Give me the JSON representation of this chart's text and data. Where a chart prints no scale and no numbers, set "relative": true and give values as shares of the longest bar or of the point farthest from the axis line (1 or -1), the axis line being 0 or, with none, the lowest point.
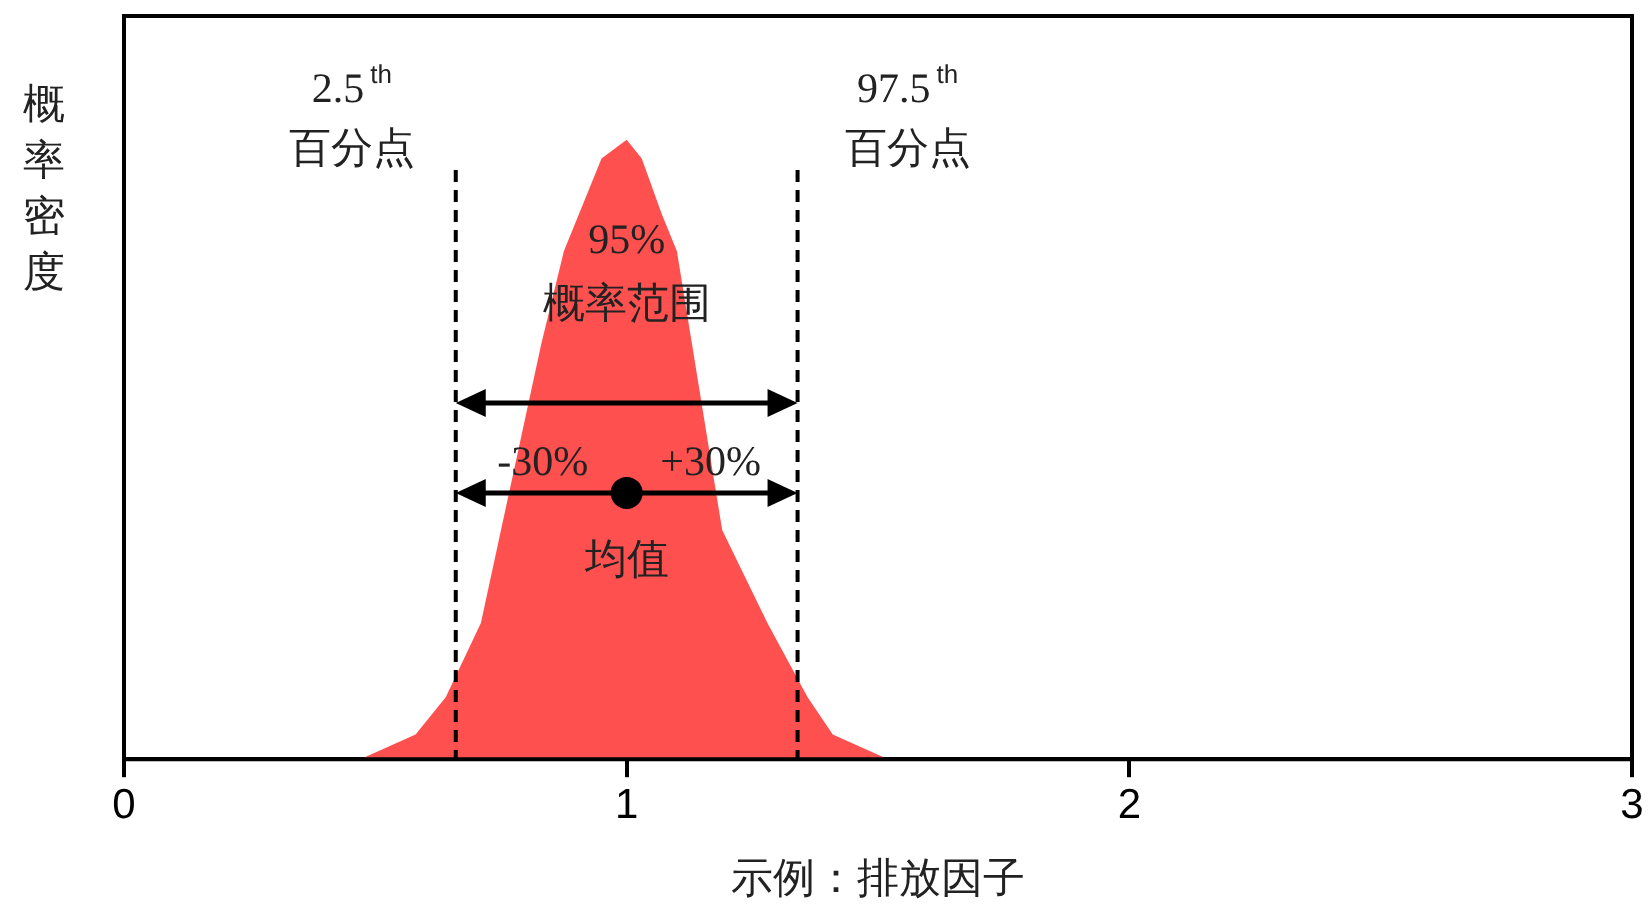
{
  "chart_data": {
    "type": "area",
    "relative": true,
    "color": "#ff5050",
    "x": [
      0,
      0.47,
      0.58,
      0.64,
      0.71,
      0.75,
      0.83,
      0.875,
      0.95,
      1.0,
      1.03,
      1.07,
      1.1,
      1.13,
      1.19,
      1.28,
      1.36,
      1.41,
      1.52,
      3
    ],
    "values": [
      0,
      0,
      0.04,
      0.1,
      0.22,
      0.37,
      0.67,
      0.82,
      0.97,
      1,
      0.97,
      0.88,
      0.82,
      0.67,
      0.37,
      0.22,
      0.1,
      0.04,
      0,
      0
    ],
    "xlim": [
      0,
      3
    ],
    "xticks": [
      0,
      1,
      2,
      3
    ],
    "xlabel": "示例：排放因子",
    "ylabel": "概率密度",
    "grid": false,
    "legend": false,
    "ref_lines": [
      {
        "axis": "x",
        "value": 0.66,
        "label": "2.5$^{th}$\n百分点",
        "line_style": "dashed",
        "color": "#000000"
      },
      {
        "axis": "x",
        "value": 1.34,
        "label": "97.5$^{th}$\n百分点",
        "line_style": "dashed",
        "color": "#000000"
      }
    ],
    "annotations": [
      "95%\n概率范围",
      "-30%",
      "+30%",
      {
        "text": "均值",
        "x": 1,
        "y": 0.43
      }
    ]
  }
}
